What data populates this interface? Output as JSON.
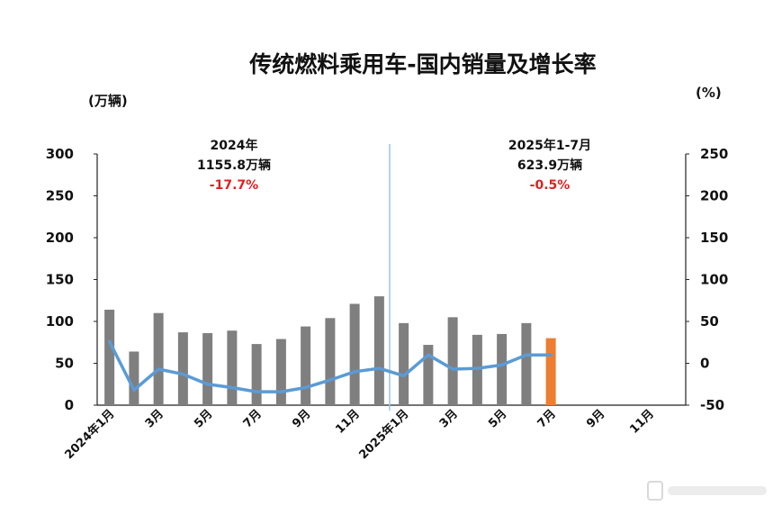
{
  "chart_data": {
    "type": "bar",
    "title": "传统燃料乘用车-国内销量及增长率",
    "left_unit": "(万辆)",
    "right_unit": "(%)",
    "left_axis": {
      "min": 0,
      "max": 300,
      "ticks": [
        "0",
        "50",
        "100",
        "150",
        "200",
        "250",
        "300"
      ]
    },
    "right_axis": {
      "min": -50,
      "max": 250,
      "ticks": [
        "-50",
        "0",
        "50",
        "100",
        "150",
        "200",
        "250"
      ]
    },
    "x_tick_labels": [
      "2024年1月",
      "3月",
      "5月",
      "7月",
      "9月",
      "11月",
      "2025年1月",
      "3月",
      "5月",
      "7月",
      "9月",
      "11月"
    ],
    "categories_count": 24,
    "series": [
      {
        "kind": "bar",
        "values": [
          114,
          64,
          110,
          87,
          86,
          89,
          73,
          79,
          94,
          104,
          121,
          130,
          98,
          72,
          105,
          84,
          85,
          98,
          80,
          null,
          null,
          null,
          null,
          null
        ],
        "color": "#7f7f7f",
        "highlight_index": 18,
        "highlight_color": "#ed7d31"
      },
      {
        "kind": "line",
        "axis": "right",
        "values": [
          26,
          -32,
          -7,
          -13,
          -25,
          -29,
          -34,
          -34,
          -29,
          -20,
          -10,
          -6,
          -15,
          10,
          -7,
          -6,
          -2,
          10,
          10,
          null,
          null,
          null,
          null,
          null
        ],
        "color": "#5b9bd5"
      }
    ],
    "annotations": [
      {
        "lines": [
          "2024年",
          "1155.8万辆"
        ],
        "pct": "-17.7%"
      },
      {
        "lines": [
          "2025年1-7月",
          "623.9万辆"
        ],
        "pct": "-0.5%"
      }
    ],
    "pct_color": "#e02020",
    "divider_color": "#9cc3e6",
    "grid": false
  }
}
